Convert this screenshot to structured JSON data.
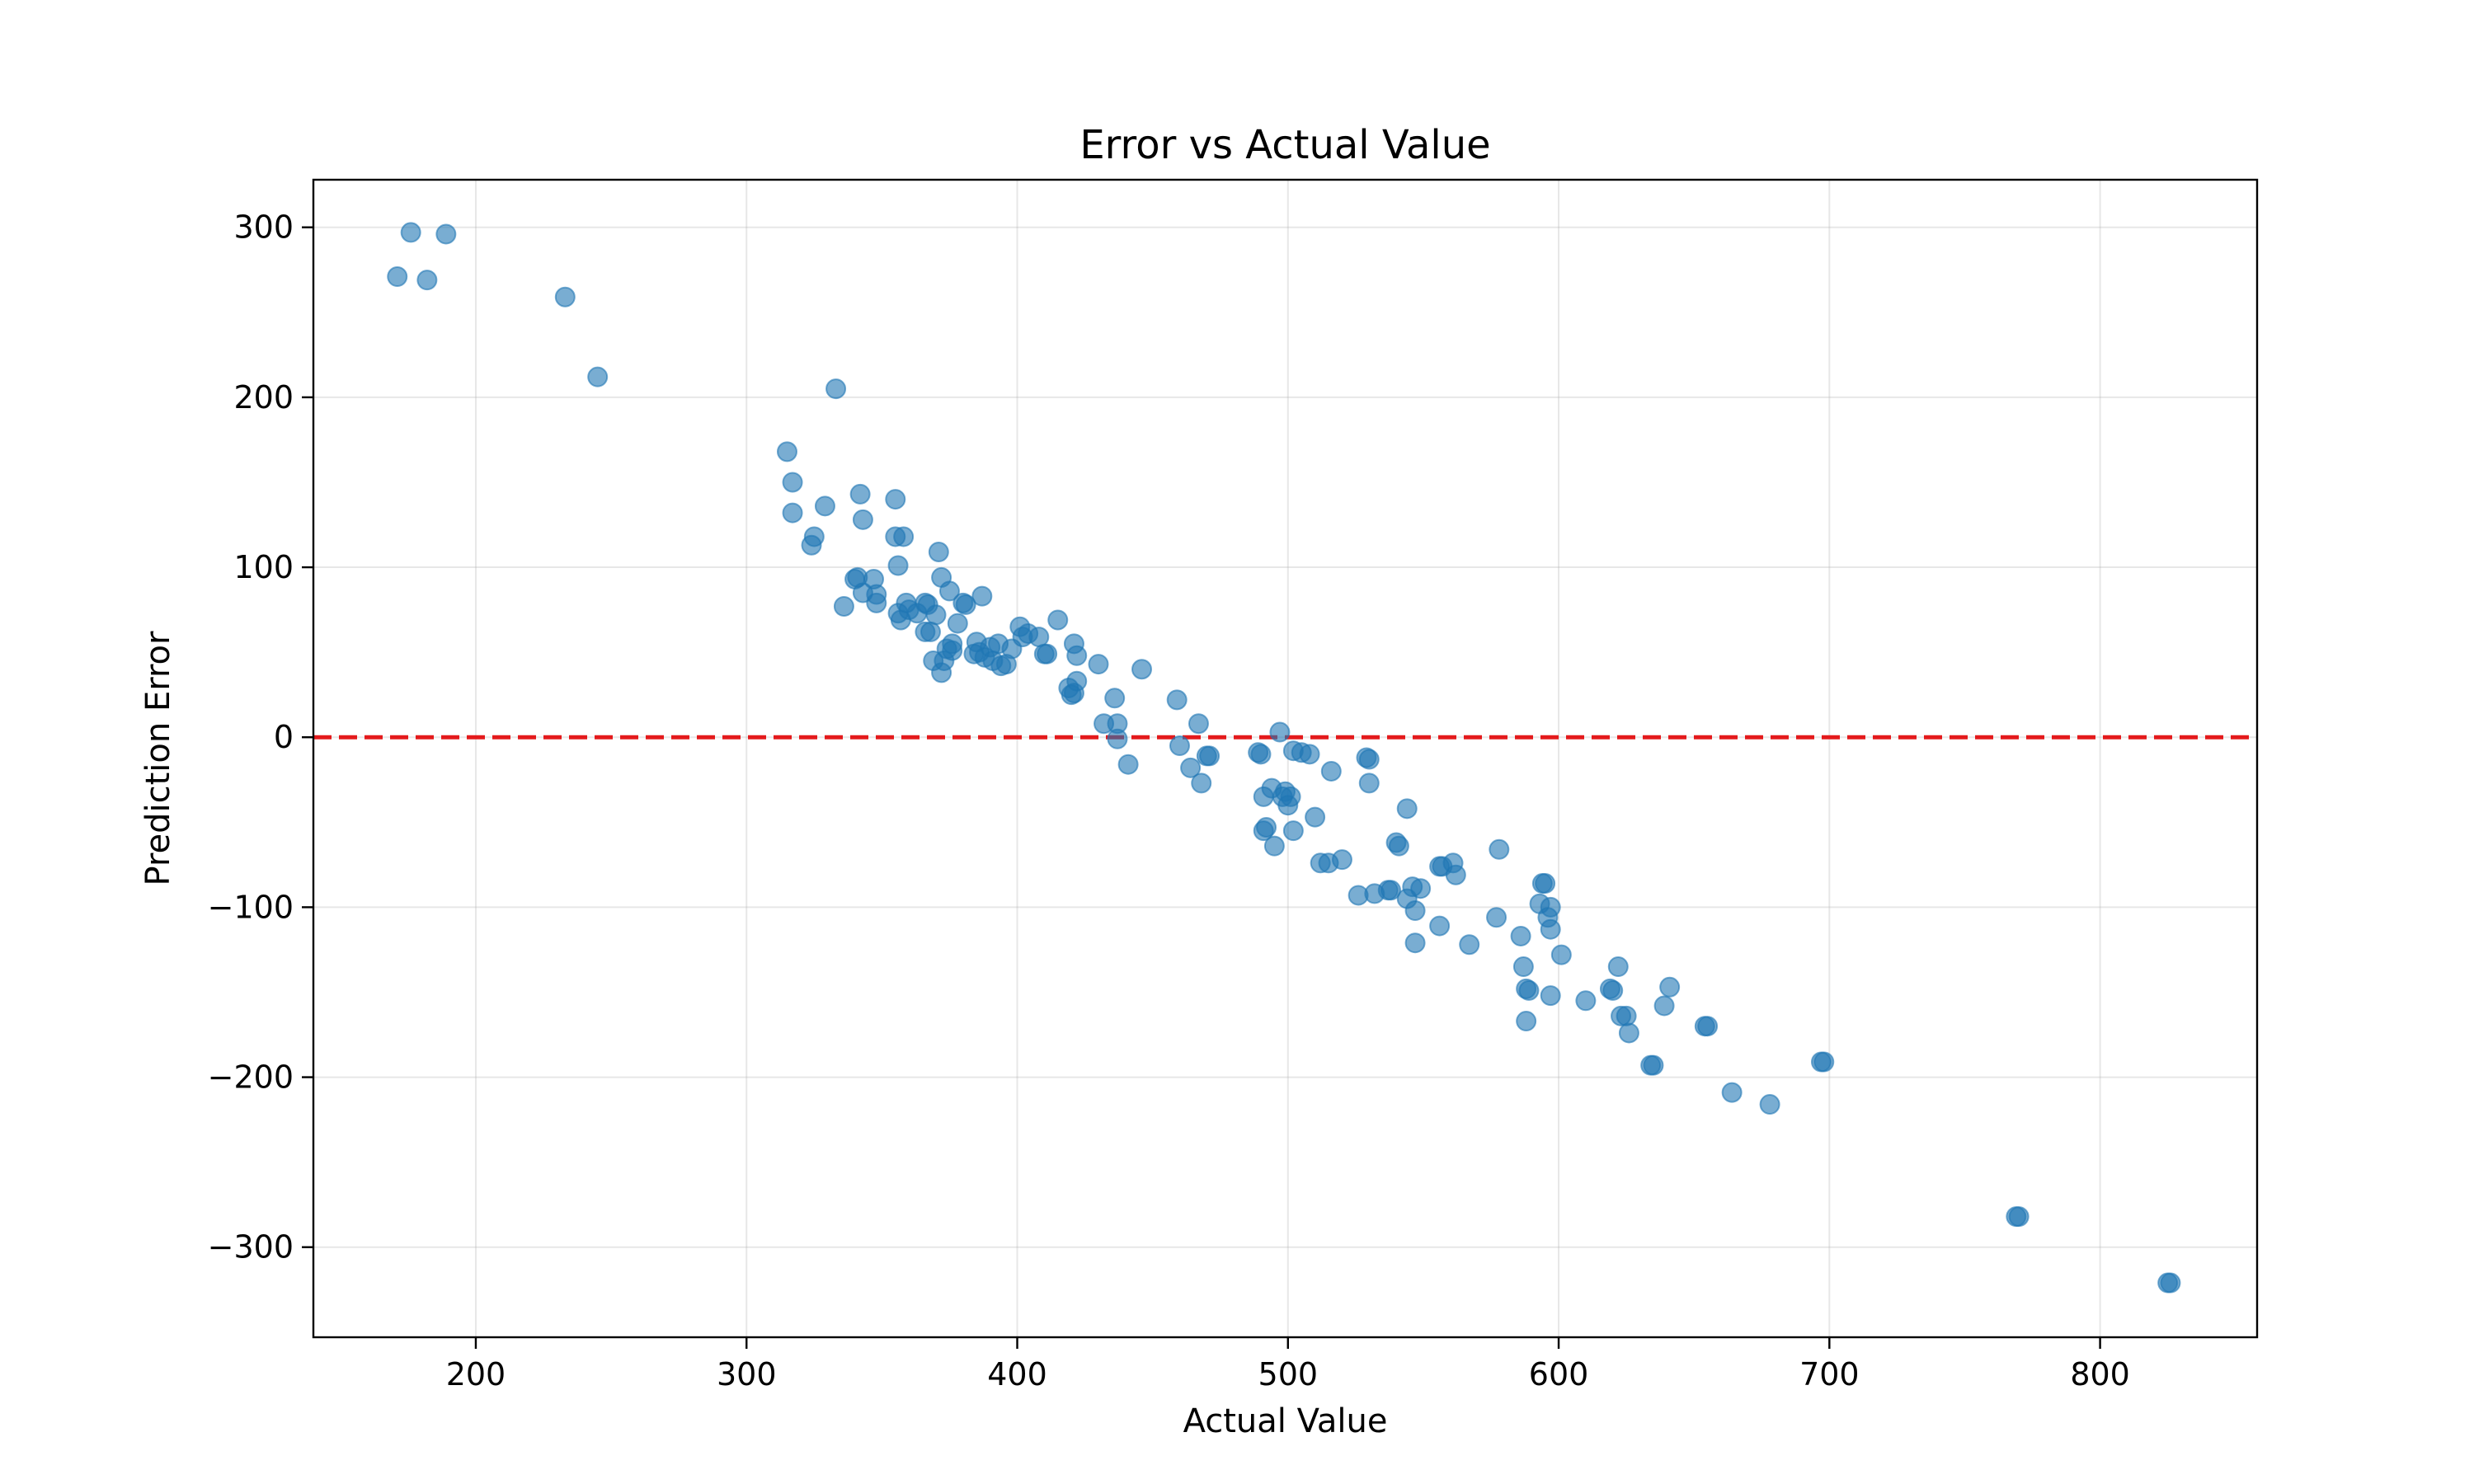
{
  "chart_data": {
    "type": "scatter",
    "title": "Error vs Actual Value",
    "xlabel": "Actual Value",
    "ylabel": "Prediction Error",
    "xlim": [
      140,
      858
    ],
    "ylim": [
      -353,
      328
    ],
    "xticks": [
      200,
      300,
      400,
      500,
      600,
      700,
      800
    ],
    "yticks": [
      300,
      200,
      100,
      0,
      -100,
      -200,
      -300
    ],
    "ytick_labels": [
      "300",
      "200",
      "100",
      "0",
      "−100",
      "−200",
      "−300"
    ],
    "grid": true,
    "reference_line": {
      "y": 0,
      "style": "dashed",
      "color": "#e41a1c"
    },
    "point_color": "#1f77b4",
    "points": [
      [
        171,
        271
      ],
      [
        176,
        297
      ],
      [
        182,
        269
      ],
      [
        189,
        296
      ],
      [
        233,
        259
      ],
      [
        245,
        212
      ],
      [
        315,
        168
      ],
      [
        317,
        150
      ],
      [
        317,
        132
      ],
      [
        324,
        113
      ],
      [
        325,
        118
      ],
      [
        329,
        136
      ],
      [
        333,
        205
      ],
      [
        336,
        77
      ],
      [
        340,
        93
      ],
      [
        341,
        94
      ],
      [
        342,
        143
      ],
      [
        343,
        128
      ],
      [
        343,
        85
      ],
      [
        347,
        93
      ],
      [
        348,
        79
      ],
      [
        348,
        84
      ],
      [
        355,
        140
      ],
      [
        355,
        118
      ],
      [
        356,
        101
      ],
      [
        356,
        73
      ],
      [
        357,
        69
      ],
      [
        358,
        118
      ],
      [
        359,
        79
      ],
      [
        360,
        75
      ],
      [
        363,
        73
      ],
      [
        366,
        62
      ],
      [
        366,
        79
      ],
      [
        367,
        78
      ],
      [
        368,
        62
      ],
      [
        369,
        45
      ],
      [
        370,
        72
      ],
      [
        371,
        109
      ],
      [
        372,
        94
      ],
      [
        372,
        38
      ],
      [
        373,
        45
      ],
      [
        374,
        52
      ],
      [
        375,
        86
      ],
      [
        376,
        55
      ],
      [
        376,
        51
      ],
      [
        378,
        67
      ],
      [
        380,
        79
      ],
      [
        381,
        78
      ],
      [
        384,
        49
      ],
      [
        385,
        56
      ],
      [
        386,
        50
      ],
      [
        387,
        83
      ],
      [
        388,
        47
      ],
      [
        390,
        53
      ],
      [
        391,
        45
      ],
      [
        393,
        55
      ],
      [
        394,
        42
      ],
      [
        396,
        43
      ],
      [
        398,
        52
      ],
      [
        401,
        65
      ],
      [
        402,
        59
      ],
      [
        404,
        61
      ],
      [
        408,
        59
      ],
      [
        410,
        49
      ],
      [
        411,
        49
      ],
      [
        415,
        69
      ],
      [
        419,
        29
      ],
      [
        420,
        25
      ],
      [
        421,
        26
      ],
      [
        421,
        55
      ],
      [
        422,
        48
      ],
      [
        422,
        33
      ],
      [
        430,
        43
      ],
      [
        432,
        8
      ],
      [
        436,
        23
      ],
      [
        437,
        8
      ],
      [
        437,
        -1
      ],
      [
        441,
        -16
      ],
      [
        446,
        40
      ],
      [
        459,
        22
      ],
      [
        460,
        -5
      ],
      [
        464,
        -18
      ],
      [
        467,
        8
      ],
      [
        468,
        -27
      ],
      [
        470,
        -11
      ],
      [
        471,
        -11
      ],
      [
        489,
        -9
      ],
      [
        490,
        -10
      ],
      [
        491,
        -35
      ],
      [
        491,
        -55
      ],
      [
        492,
        -53
      ],
      [
        494,
        -30
      ],
      [
        495,
        -64
      ],
      [
        497,
        3
      ],
      [
        498,
        -35
      ],
      [
        499,
        -32
      ],
      [
        500,
        -40
      ],
      [
        501,
        -35
      ],
      [
        502,
        -55
      ],
      [
        502,
        -8
      ],
      [
        505,
        -9
      ],
      [
        508,
        -10
      ],
      [
        510,
        -47
      ],
      [
        512,
        -74
      ],
      [
        515,
        -74
      ],
      [
        516,
        -20
      ],
      [
        520,
        -72
      ],
      [
        526,
        -93
      ],
      [
        529,
        -12
      ],
      [
        530,
        -13
      ],
      [
        530,
        -27
      ],
      [
        532,
        -92
      ],
      [
        537,
        -90
      ],
      [
        538,
        -90
      ],
      [
        540,
        -62
      ],
      [
        541,
        -64
      ],
      [
        544,
        -42
      ],
      [
        544,
        -95
      ],
      [
        546,
        -88
      ],
      [
        547,
        -102
      ],
      [
        547,
        -121
      ],
      [
        549,
        -89
      ],
      [
        556,
        -111
      ],
      [
        556,
        -76
      ],
      [
        557,
        -76
      ],
      [
        561,
        -74
      ],
      [
        562,
        -81
      ],
      [
        567,
        -122
      ],
      [
        577,
        -106
      ],
      [
        578,
        -66
      ],
      [
        586,
        -117
      ],
      [
        587,
        -135
      ],
      [
        588,
        -167
      ],
      [
        588,
        -148
      ],
      [
        589,
        -149
      ],
      [
        593,
        -98
      ],
      [
        594,
        -86
      ],
      [
        595,
        -86
      ],
      [
        596,
        -106
      ],
      [
        597,
        -100
      ],
      [
        597,
        -113
      ],
      [
        597,
        -152
      ],
      [
        601,
        -128
      ],
      [
        610,
        -155
      ],
      [
        619,
        -148
      ],
      [
        620,
        -149
      ],
      [
        622,
        -135
      ],
      [
        623,
        -164
      ],
      [
        625,
        -164
      ],
      [
        626,
        -174
      ],
      [
        634,
        -193
      ],
      [
        635,
        -193
      ],
      [
        639,
        -158
      ],
      [
        641,
        -147
      ],
      [
        654,
        -170
      ],
      [
        655,
        -170
      ],
      [
        664,
        -209
      ],
      [
        678,
        -216
      ],
      [
        697,
        -191
      ],
      [
        698,
        -191
      ],
      [
        769,
        -282
      ],
      [
        770,
        -282
      ],
      [
        825,
        -321
      ],
      [
        826,
        -321
      ]
    ]
  }
}
